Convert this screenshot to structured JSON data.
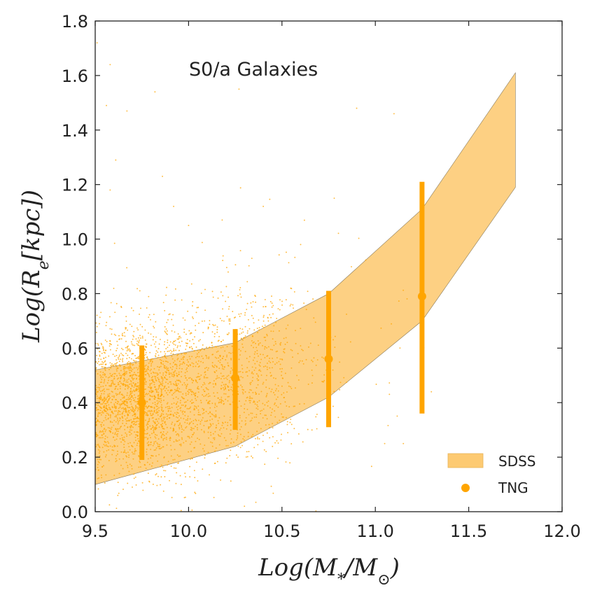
{
  "chart_data": {
    "type": "scatter",
    "annotation": "S0/a Galaxies",
    "xlabel": "Log(M_* / M_⊙)",
    "ylabel": "Log(R_e [kpc])",
    "xlim": [
      9.5,
      12.0
    ],
    "ylim": [
      0.0,
      1.8
    ],
    "xticks": [
      "9.5",
      "10.0",
      "10.5",
      "11.0",
      "11.5",
      "12.0"
    ],
    "yticks": [
      "0.0",
      "0.2",
      "0.4",
      "0.6",
      "0.8",
      "1.0",
      "1.2",
      "1.4",
      "1.6",
      "1.8"
    ],
    "grid": false,
    "legend": {
      "placement": "bottom-right",
      "entries": [
        {
          "label": "SDSS",
          "kind": "band"
        },
        {
          "label": "TNG",
          "kind": "marker"
        }
      ]
    },
    "series": [
      {
        "name": "SDSS",
        "kind": "band",
        "color": "#fdca72",
        "x": [
          9.5,
          10.25,
          10.75,
          11.25,
          11.75
        ],
        "lower": [
          0.1,
          0.24,
          0.42,
          0.7,
          1.19
        ],
        "upper": [
          0.52,
          0.62,
          0.8,
          1.11,
          1.61
        ]
      },
      {
        "name": "TNG",
        "kind": "errorbar",
        "color": "#ffa500",
        "x": [
          9.75,
          10.25,
          10.75,
          11.25
        ],
        "y": [
          0.4,
          0.49,
          0.56,
          0.79
        ],
        "lower": [
          0.19,
          0.3,
          0.31,
          0.36
        ],
        "upper": [
          0.61,
          0.67,
          0.81,
          1.21
        ]
      },
      {
        "name": "TNG galaxies",
        "kind": "scatter",
        "color": "#ffa500",
        "description": "individual simulated galaxies (~3000 points) concentrated at low mass",
        "clusters": [
          {
            "n": 1500,
            "x_mean": 9.7,
            "x_sd": 0.15,
            "y_mean": 0.4,
            "y_sd": 0.13
          },
          {
            "n": 1000,
            "x_mean": 10.0,
            "x_sd": 0.2,
            "y_mean": 0.45,
            "y_sd": 0.15
          },
          {
            "n": 450,
            "x_mean": 10.35,
            "x_sd": 0.15,
            "y_mean": 0.52,
            "y_sd": 0.17
          },
          {
            "n": 80,
            "x_mean": 10.75,
            "x_sd": 0.2,
            "y_mean": 0.55,
            "y_sd": 0.2
          }
        ],
        "outliers": [
          [
            9.51,
            1.72
          ],
          [
            9.58,
            1.64
          ],
          [
            9.82,
            1.54
          ],
          [
            10.27,
            1.55
          ],
          [
            9.56,
            1.49
          ],
          [
            9.67,
            1.47
          ],
          [
            10.9,
            1.48
          ],
          [
            11.1,
            1.46
          ],
          [
            9.61,
            1.29
          ],
          [
            9.58,
            1.18
          ],
          [
            9.86,
            1.23
          ],
          [
            9.92,
            1.12
          ],
          [
            10.18,
            1.07
          ],
          [
            10.4,
            1.12
          ],
          [
            10.0,
            1.05
          ],
          [
            11.3,
            0.44
          ],
          [
            11.05,
            0.25
          ],
          [
            11.15,
            0.25
          ],
          [
            10.78,
            1.15
          ],
          [
            10.6,
            0.98
          ]
        ]
      }
    ]
  }
}
